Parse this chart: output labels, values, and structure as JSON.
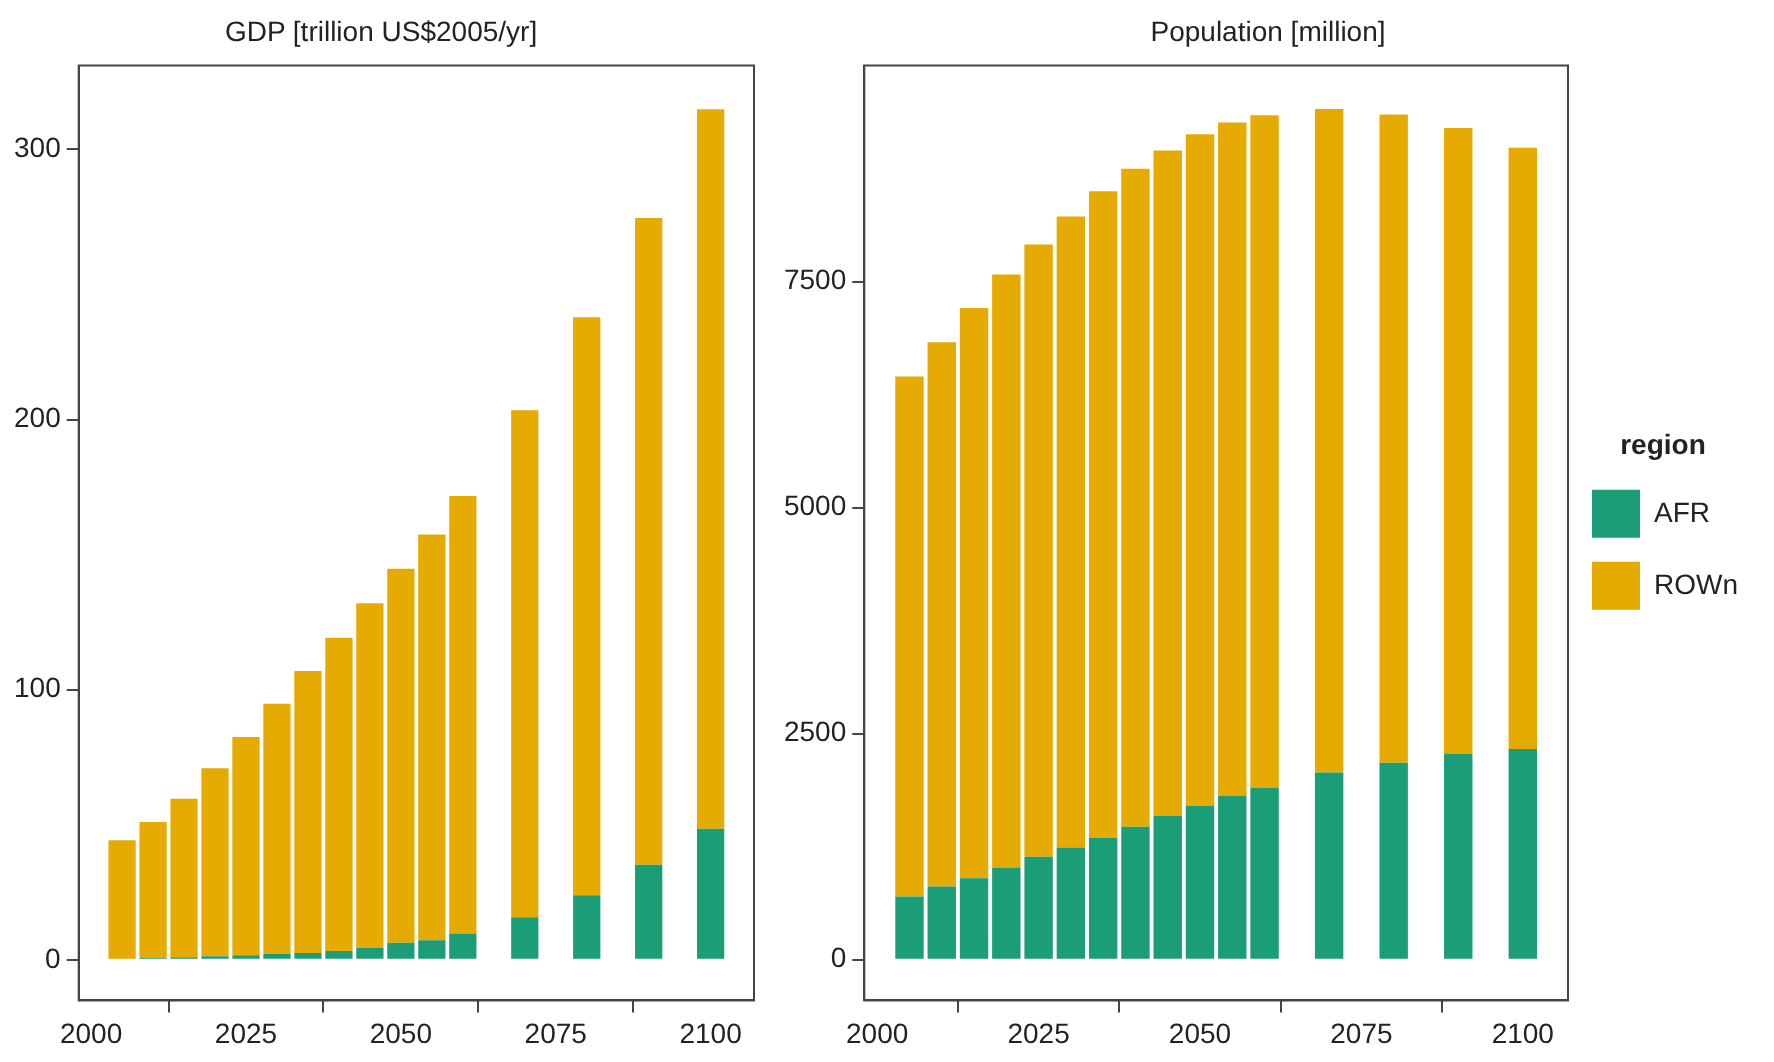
{
  "chart_data": [
    {
      "type": "bar",
      "title": "GDP [trillion US$2005/yr]",
      "stacked": true,
      "x": [
        2005,
        2010,
        2015,
        2020,
        2025,
        2030,
        2035,
        2040,
        2045,
        2050,
        2055,
        2060,
        2070,
        2080,
        2090,
        2100
      ],
      "series": [
        {
          "color": "#1b9e77",
          "values": [
            null,
            0.7,
            1,
            1.3,
            1.7,
            2.2,
            2.5,
            3.3,
            4.5,
            6.3,
            7.3,
            9.8,
            15.8,
            23.9,
            35.2,
            48.5
          ]
        },
        {
          "color": "#e6ab02",
          "values": [
            44.3,
            50.3,
            58.6,
            69.6,
            80.8,
            92.6,
            104.4,
            115.9,
            127.5,
            138.5,
            150.1,
            161.9,
            187.6,
            214,
            239.4,
            266.3
          ]
        }
      ],
      "xlim": [
        1998,
        2107
      ],
      "xticks": [
        2000,
        2025,
        2050,
        2075,
        2100
      ],
      "ylim": [
        -15,
        331
      ],
      "yticks": [
        0,
        100,
        200,
        300
      ],
      "grid": false
    },
    {
      "type": "bar",
      "title": "Population [million]",
      "stacked": true,
      "x": [
        2005,
        2010,
        2015,
        2020,
        2025,
        2030,
        2035,
        2040,
        2045,
        2050,
        2055,
        2060,
        2070,
        2080,
        2090,
        2100
      ],
      "series": [
        {
          "name": "AFR",
          "color": "#1b9e77",
          "values": [
            700,
            810,
            900,
            1020,
            1140,
            1240,
            1350,
            1470,
            1590,
            1700,
            1810,
            1900,
            2070,
            2180,
            2280,
            2330
          ]
        },
        {
          "name": "ROWn",
          "color": "#e6ab02",
          "values": [
            5750,
            6020,
            6310,
            6560,
            6770,
            6980,
            7150,
            7280,
            7360,
            7430,
            7450,
            7440,
            7340,
            7170,
            6920,
            6650
          ]
        }
      ],
      "xlim": [
        1998,
        2107
      ],
      "xticks": [
        2000,
        2025,
        2050,
        2075,
        2100
      ],
      "ylim": [
        -450,
        9890
      ],
      "yticks": [
        0,
        2500,
        5000,
        7500
      ],
      "grid": false,
      "legend": "right",
      "legend_title": "region"
    }
  ]
}
